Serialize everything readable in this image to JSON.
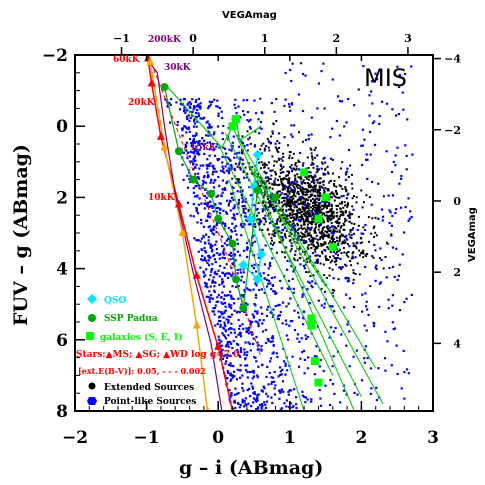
{
  "chart_data": {
    "type": "scatter",
    "title": "MIS",
    "xlabel": "g – i (ABmag)",
    "ylabel": "FUV – g (ABmag)",
    "top_axis_label": "VEGAmag",
    "right_axis_label": "VEGAmag",
    "xlim": [
      -2,
      3
    ],
    "ylim": [
      8,
      -2
    ],
    "x_ticks": [
      "−2",
      "−1",
      "0",
      "1",
      "2",
      "3"
    ],
    "y_ticks": [
      "−2",
      "0",
      "2",
      "4",
      "6",
      "8"
    ],
    "top_ticks": [
      "−1",
      "0",
      "1",
      "2",
      "3"
    ],
    "right_ticks": [
      "−4",
      "−2",
      "0",
      "2",
      "4"
    ],
    "temperature_labels": [
      "200kK",
      "60kK",
      "30kK",
      "20kK",
      "15kK",
      "10kK"
    ],
    "legend": [
      {
        "label": "QSO",
        "color": "#00e5ff"
      },
      {
        "label": "SSP Padua",
        "color": "#00aa00"
      },
      {
        "label": "galaxies (S, E, I)",
        "color": "#00ff00"
      },
      {
        "label": "Stars:▲MS; ▲SG; ▲WD log g=7.0",
        "color": "#ff0000"
      },
      {
        "label": "[ext.E(B-V)]: 0.05, - - - 0.002",
        "color": "#ff0000"
      },
      {
        "label": "Extended Sources",
        "color": "#000000"
      },
      {
        "label": "Point-like Sources",
        "color": "#0000ff"
      }
    ],
    "series": [
      {
        "name": "Extended Sources",
        "color": "#000000",
        "center": [
          1.2,
          2.3
        ],
        "spread": [
          0.45,
          1.1
        ]
      },
      {
        "name": "Point-like Sources",
        "color": "#0000ff",
        "center": [
          0.4,
          2.2
        ],
        "spread": [
          0.7,
          1.6
        ]
      }
    ],
    "sequences": {
      "main_sequence": [
        [
          -0.98,
          -1.9
        ],
        [
          -0.93,
          -1.2
        ],
        [
          -0.8,
          0.3
        ],
        [
          -0.55,
          2.2
        ],
        [
          -0.3,
          4.2
        ],
        [
          0.0,
          6.2
        ],
        [
          0.2,
          8.0
        ]
      ],
      "supergiants": [
        [
          -0.95,
          -1.8
        ],
        [
          -0.75,
          0.6
        ],
        [
          -0.5,
          3.0
        ],
        [
          -0.3,
          5.6
        ],
        [
          -0.15,
          8.0
        ]
      ],
      "white_dwarfs": [
        [
          -1.0,
          -1.9
        ],
        [
          -0.85,
          -1.5
        ],
        [
          -0.75,
          0.0
        ],
        [
          -0.6,
          1.9
        ],
        [
          -0.35,
          4.1
        ],
        [
          -0.1,
          6.1
        ],
        [
          0.05,
          8.0
        ]
      ],
      "ms_reddened": [
        [
          -0.9,
          -1.6
        ],
        [
          -0.4,
          1.0
        ],
        [
          0.1,
          3.5
        ],
        [
          0.6,
          6.5
        ]
      ],
      "qso": [
        [
          0.55,
          0.8
        ],
        [
          0.5,
          1.7
        ],
        [
          0.45,
          2.6
        ],
        [
          0.6,
          3.6
        ],
        [
          0.55,
          4.3
        ],
        [
          0.35,
          3.9
        ]
      ],
      "ssp_padua": [
        [
          -0.75,
          -1.1
        ],
        [
          -0.55,
          0.7
        ],
        [
          -0.35,
          1.5
        ],
        [
          -0.1,
          1.9
        ],
        [
          0.0,
          2.6
        ],
        [
          0.2,
          3.3
        ],
        [
          0.25,
          4.3
        ],
        [
          0.35,
          5.1
        ],
        [
          0.55,
          1.8
        ],
        [
          0.8,
          2.0
        ]
      ],
      "galaxies": [
        [
          1.2,
          1.3
        ],
        [
          1.6,
          3.4
        ],
        [
          1.4,
          2.6
        ],
        [
          1.5,
          2.0
        ],
        [
          1.3,
          5.6
        ],
        [
          1.35,
          6.6
        ],
        [
          1.3,
          5.4
        ],
        [
          1.4,
          7.2
        ],
        [
          0.2,
          0.0
        ],
        [
          0.25,
          -0.2
        ]
      ]
    }
  }
}
